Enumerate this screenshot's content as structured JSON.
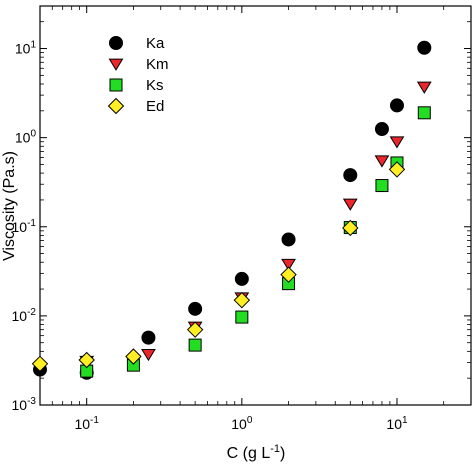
{
  "chart_data": {
    "type": "scatter",
    "title": "",
    "xlabel": "C (g L-1)",
    "xlabel_parts": {
      "main": "C (g L",
      "sup": "-1",
      "close": ")"
    },
    "ylabel": "Viscosity (Pa.s)",
    "xscale": "log",
    "yscale": "log",
    "xlim": [
      0.05,
      30
    ],
    "ylim": [
      0.001,
      30
    ],
    "grid": false,
    "legend_position": "top-left",
    "x_ticks": [
      {
        "value": 0.1,
        "base": "10",
        "exp": "-1"
      },
      {
        "value": 1,
        "base": "10",
        "exp": "0"
      },
      {
        "value": 10,
        "base": "10",
        "exp": "1"
      }
    ],
    "y_ticks": [
      {
        "value": 0.001,
        "base": "10",
        "exp": "-3"
      },
      {
        "value": 0.01,
        "base": "10",
        "exp": "-2"
      },
      {
        "value": 0.1,
        "base": "10",
        "exp": "-1"
      },
      {
        "value": 1,
        "base": "10",
        "exp": "0"
      },
      {
        "value": 10,
        "base": "10",
        "exp": "1"
      }
    ],
    "series": [
      {
        "name": "Ka",
        "marker": "circle",
        "color": "#000000",
        "points": [
          [
            0.05,
            0.0025
          ],
          [
            0.1,
            0.0023
          ],
          [
            0.25,
            0.0057
          ],
          [
            0.5,
            0.012
          ],
          [
            1,
            0.026
          ],
          [
            2,
            0.072
          ],
          [
            5,
            0.38
          ],
          [
            8,
            1.25
          ],
          [
            10,
            2.3
          ],
          [
            15,
            10.2
          ]
        ]
      },
      {
        "name": "Km",
        "marker": "triangle-down",
        "color": "#e8262b",
        "points": [
          [
            0.1,
            0.0031
          ],
          [
            0.25,
            0.0037
          ],
          [
            0.5,
            0.0075
          ],
          [
            1,
            0.016
          ],
          [
            2,
            0.038
          ],
          [
            5,
            0.18
          ],
          [
            8,
            0.55
          ],
          [
            10,
            0.9
          ],
          [
            15,
            3.7
          ]
        ]
      },
      {
        "name": "Ks",
        "marker": "square",
        "color": "#22dd22",
        "points": [
          [
            0.1,
            0.0024
          ],
          [
            0.2,
            0.0028
          ],
          [
            0.5,
            0.0047
          ],
          [
            1,
            0.0097
          ],
          [
            2,
            0.023
          ],
          [
            5,
            0.098
          ],
          [
            8,
            0.29
          ],
          [
            10,
            0.52
          ],
          [
            15,
            1.9
          ]
        ]
      },
      {
        "name": "Ed",
        "marker": "diamond",
        "color": "#ffee22",
        "points": [
          [
            0.05,
            0.0029
          ],
          [
            0.1,
            0.0032
          ],
          [
            0.2,
            0.0035
          ],
          [
            0.5,
            0.007
          ],
          [
            1,
            0.015
          ],
          [
            2,
            0.029
          ],
          [
            5,
            0.097
          ],
          [
            10,
            0.44
          ]
        ]
      }
    ]
  }
}
